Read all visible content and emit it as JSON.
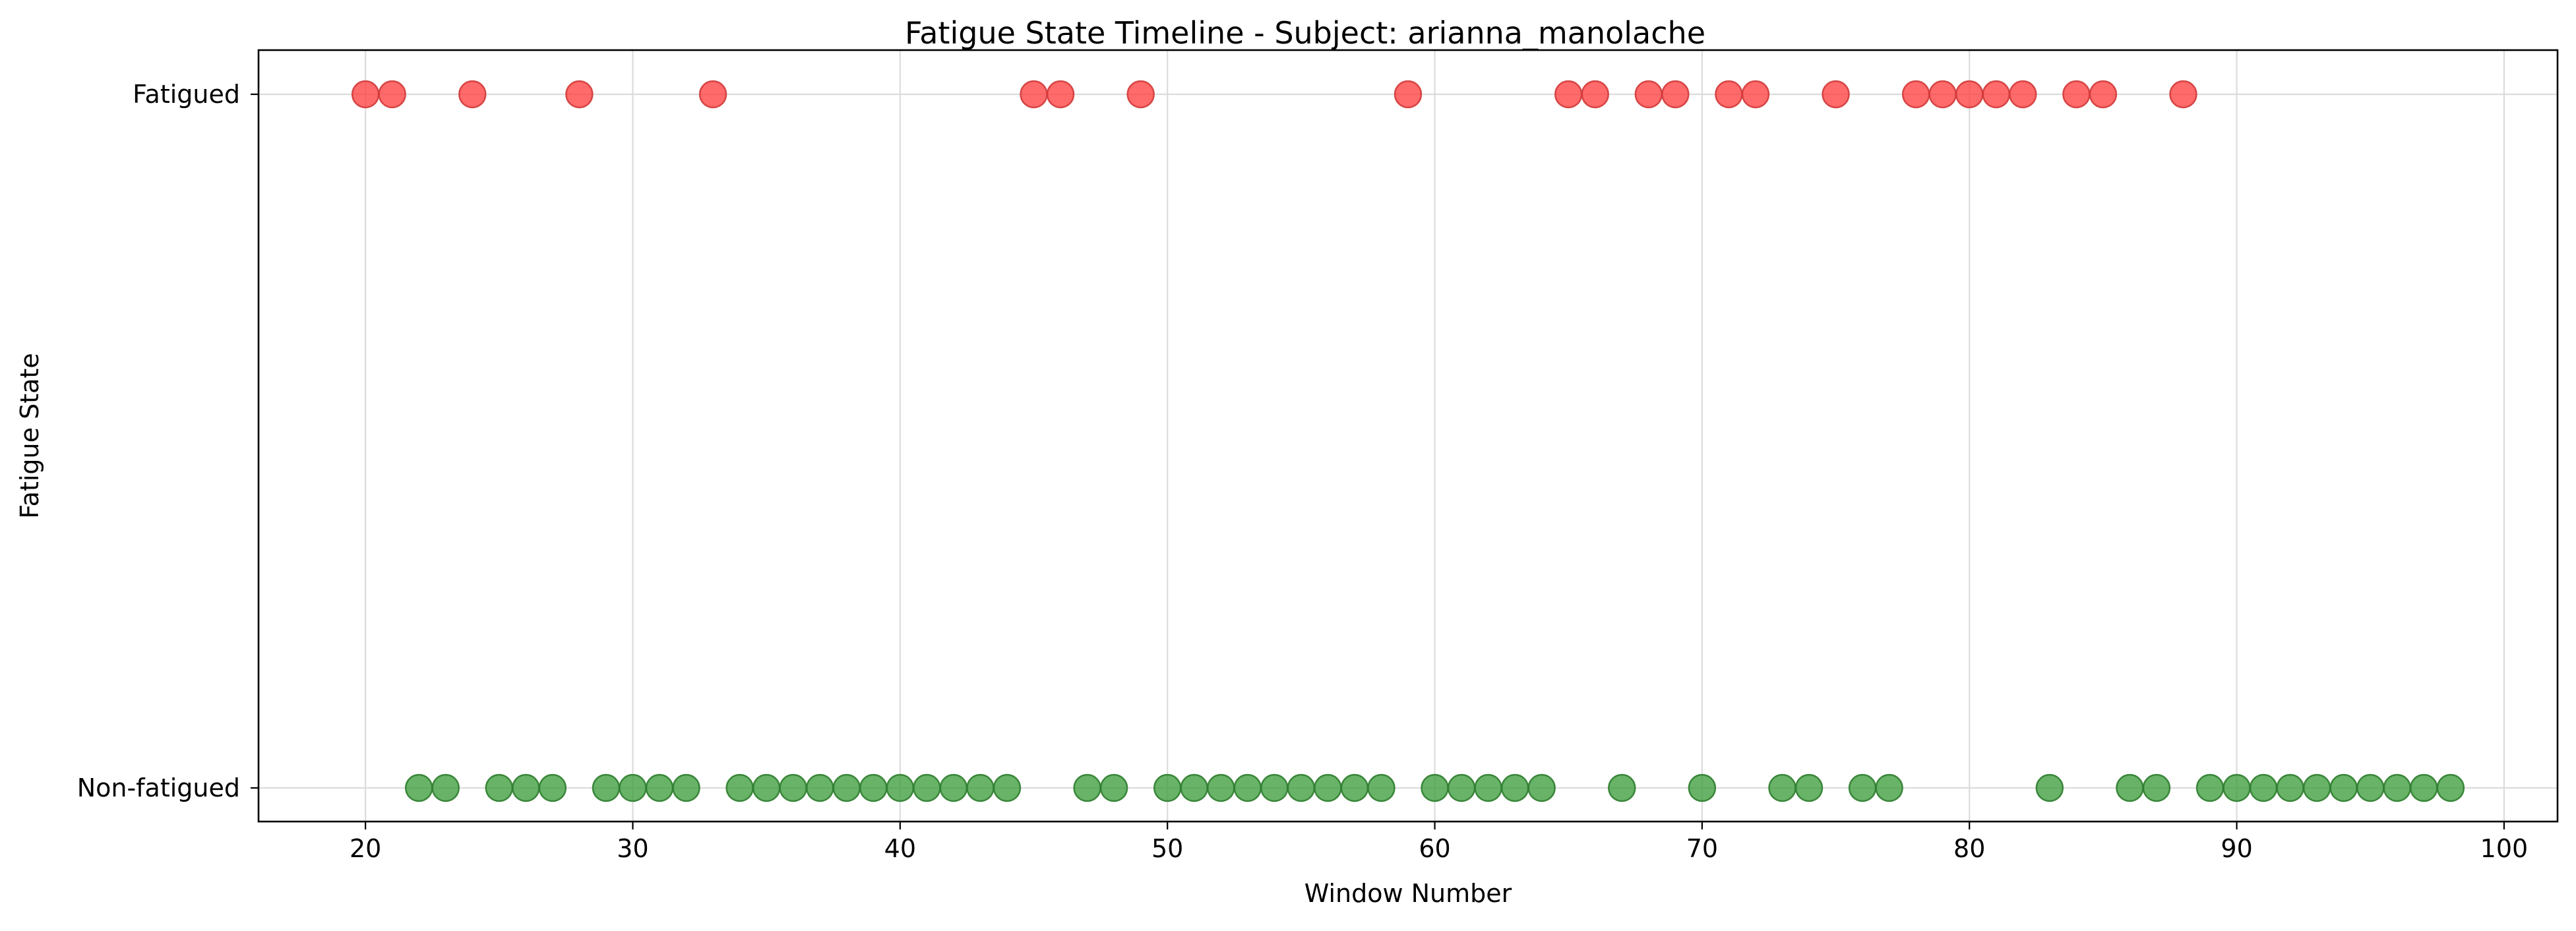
{
  "chart_data": {
    "type": "scatter",
    "title": "Fatigue State Timeline - Subject: arianna_manolache",
    "xlabel": "Window Number",
    "ylabel": "Fatigue State",
    "xlim": [
      16,
      102
    ],
    "xticks": [
      20,
      30,
      40,
      50,
      60,
      70,
      80,
      90,
      100
    ],
    "yticks": [
      {
        "value": 1,
        "label": "Fatigued"
      },
      {
        "value": 0,
        "label": "Non-fatigued"
      }
    ],
    "grid": true,
    "series": [
      {
        "state": 1,
        "color": "#ff4040",
        "edge_color": "#d23a3a",
        "x": [
          20,
          21,
          24,
          28,
          33,
          45,
          46,
          49,
          59,
          65,
          66,
          68,
          69,
          71,
          72,
          75,
          78,
          79,
          80,
          81,
          82,
          84,
          85,
          88
        ]
      },
      {
        "state": 0,
        "color": "#3f9e3f",
        "edge_color": "#2e7d2e",
        "x": [
          22,
          23,
          25,
          26,
          27,
          29,
          30,
          31,
          32,
          34,
          35,
          36,
          37,
          38,
          39,
          40,
          41,
          42,
          43,
          44,
          47,
          48,
          50,
          51,
          52,
          53,
          54,
          55,
          56,
          57,
          58,
          60,
          61,
          62,
          63,
          64,
          67,
          70,
          73,
          74,
          76,
          77,
          83,
          86,
          87,
          89,
          90,
          91,
          92,
          93,
          94,
          95,
          96,
          97,
          98
        ]
      }
    ]
  }
}
